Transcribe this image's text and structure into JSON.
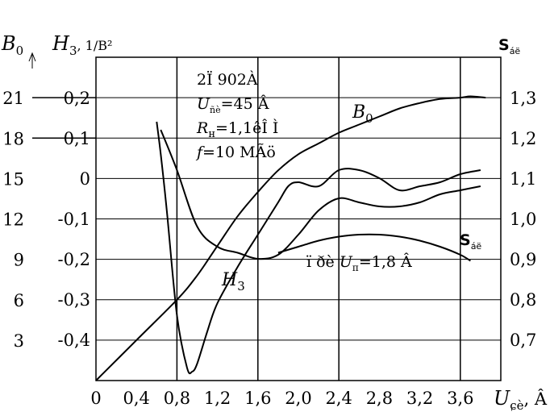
{
  "chart_data": {
    "type": "line",
    "title": "",
    "x_axis": {
      "label": "U",
      "label_sub": "ɕè",
      "unit": ", Â",
      "range": [
        0,
        4.0
      ],
      "ticks": [
        0,
        0.4,
        0.8,
        1.2,
        1.6,
        2.0,
        2.4,
        2.8,
        3.2,
        3.6
      ],
      "tick_labels": [
        "0",
        "0,4",
        "0,8",
        "1,2",
        "1,6",
        "2,0",
        "2,4",
        "2,8",
        "3,2",
        "3,6"
      ]
    },
    "y_axis_b0": {
      "label": "B",
      "label_sub": "0",
      "range": [
        0,
        24
      ],
      "ticks": [
        3,
        6,
        9,
        12,
        15,
        18,
        21
      ],
      "tick_labels": [
        "3",
        "6",
        "9",
        "12",
        "15",
        "18",
        "21"
      ]
    },
    "y_axis_h3": {
      "label": "H",
      "label_sub": "3",
      "unit": ", 1/В²",
      "ticks": [
        -0.4,
        -0.3,
        -0.2,
        -0.1,
        0,
        0.1,
        0.2
      ],
      "tick_labels": [
        "-0,4",
        "-0,3",
        "-0,2",
        "-0,1",
        "0",
        "0,1",
        "0,2"
      ]
    },
    "y_axis_s": {
      "label": "S",
      "label_sub": "áë",
      "ticks": [
        0.7,
        0.8,
        0.9,
        1.0,
        1.1,
        1.2,
        1.3
      ],
      "tick_labels": [
        "0,7",
        "0,8",
        "0,9",
        "1,0",
        "1,1",
        "1,2",
        "1,3"
      ]
    },
    "grid": true,
    "annotation": {
      "lines": [
        "2Ï  902À",
        "U",
        "ñè",
        "=45 Â",
        "R",
        "н",
        "=1,1êÎ  Ì",
        "f",
        "=10 MÃö"
      ]
    },
    "secondary_annotation": {
      "text_a": "ï ðè ",
      "var": "U",
      "sub": "п",
      "text_b": "=1,8 Â"
    },
    "series": [
      {
        "name": "B0",
        "label_main": "B",
        "label_sub": "0",
        "axis": "b0",
        "x": [
          0,
          0.4,
          0.8,
          1.0,
          1.2,
          1.4,
          1.6,
          1.8,
          2.0,
          2.2,
          2.4,
          2.6,
          2.8,
          3.0,
          3.2,
          3.4,
          3.6,
          3.7,
          3.85
        ],
        "y": [
          0,
          3.0,
          6.0,
          7.8,
          10.0,
          12.2,
          14.0,
          15.6,
          16.8,
          17.6,
          18.4,
          19.0,
          19.6,
          20.2,
          20.6,
          20.9,
          21.0,
          21.1,
          21.0
        ]
      },
      {
        "name": "H3",
        "label_main": "H",
        "label_sub": "3",
        "axis": "h3",
        "x": [
          0.6,
          0.64,
          0.7,
          0.8,
          0.9,
          0.95,
          1.0,
          1.1,
          1.2,
          1.4,
          1.6,
          1.8,
          1.9,
          2.0,
          2.2,
          2.4,
          2.6,
          2.8,
          3.0,
          3.2,
          3.4,
          3.6,
          3.8
        ],
        "y": [
          0.14,
          0.06,
          -0.08,
          -0.34,
          -0.47,
          -0.48,
          -0.46,
          -0.38,
          -0.31,
          -0.22,
          -0.14,
          -0.06,
          -0.02,
          -0.01,
          -0.02,
          0.02,
          0.02,
          0.0,
          -0.03,
          -0.02,
          -0.01,
          0.01,
          0.02
        ]
      },
      {
        "name": "Sáë (Un=45 V)",
        "axis": "s",
        "x": [
          0.64,
          0.8,
          1.0,
          1.2,
          1.4,
          1.6,
          1.8,
          2.0,
          2.2,
          2.4,
          2.6,
          2.8,
          3.0,
          3.2,
          3.4,
          3.6,
          3.8
        ],
        "y": [
          1.22,
          1.12,
          0.98,
          0.93,
          0.915,
          0.9,
          0.91,
          0.96,
          1.02,
          1.05,
          1.04,
          1.03,
          1.03,
          1.04,
          1.06,
          1.07,
          1.08
        ]
      },
      {
        "name": "Sáë (Un=1,8 V)",
        "axis": "s",
        "x": [
          1.8,
          2.0,
          2.2,
          2.4,
          2.6,
          2.8,
          3.0,
          3.2,
          3.4,
          3.6,
          3.7
        ],
        "y": [
          0.915,
          0.93,
          0.945,
          0.955,
          0.96,
          0.96,
          0.955,
          0.945,
          0.93,
          0.91,
          0.895
        ]
      }
    ]
  }
}
